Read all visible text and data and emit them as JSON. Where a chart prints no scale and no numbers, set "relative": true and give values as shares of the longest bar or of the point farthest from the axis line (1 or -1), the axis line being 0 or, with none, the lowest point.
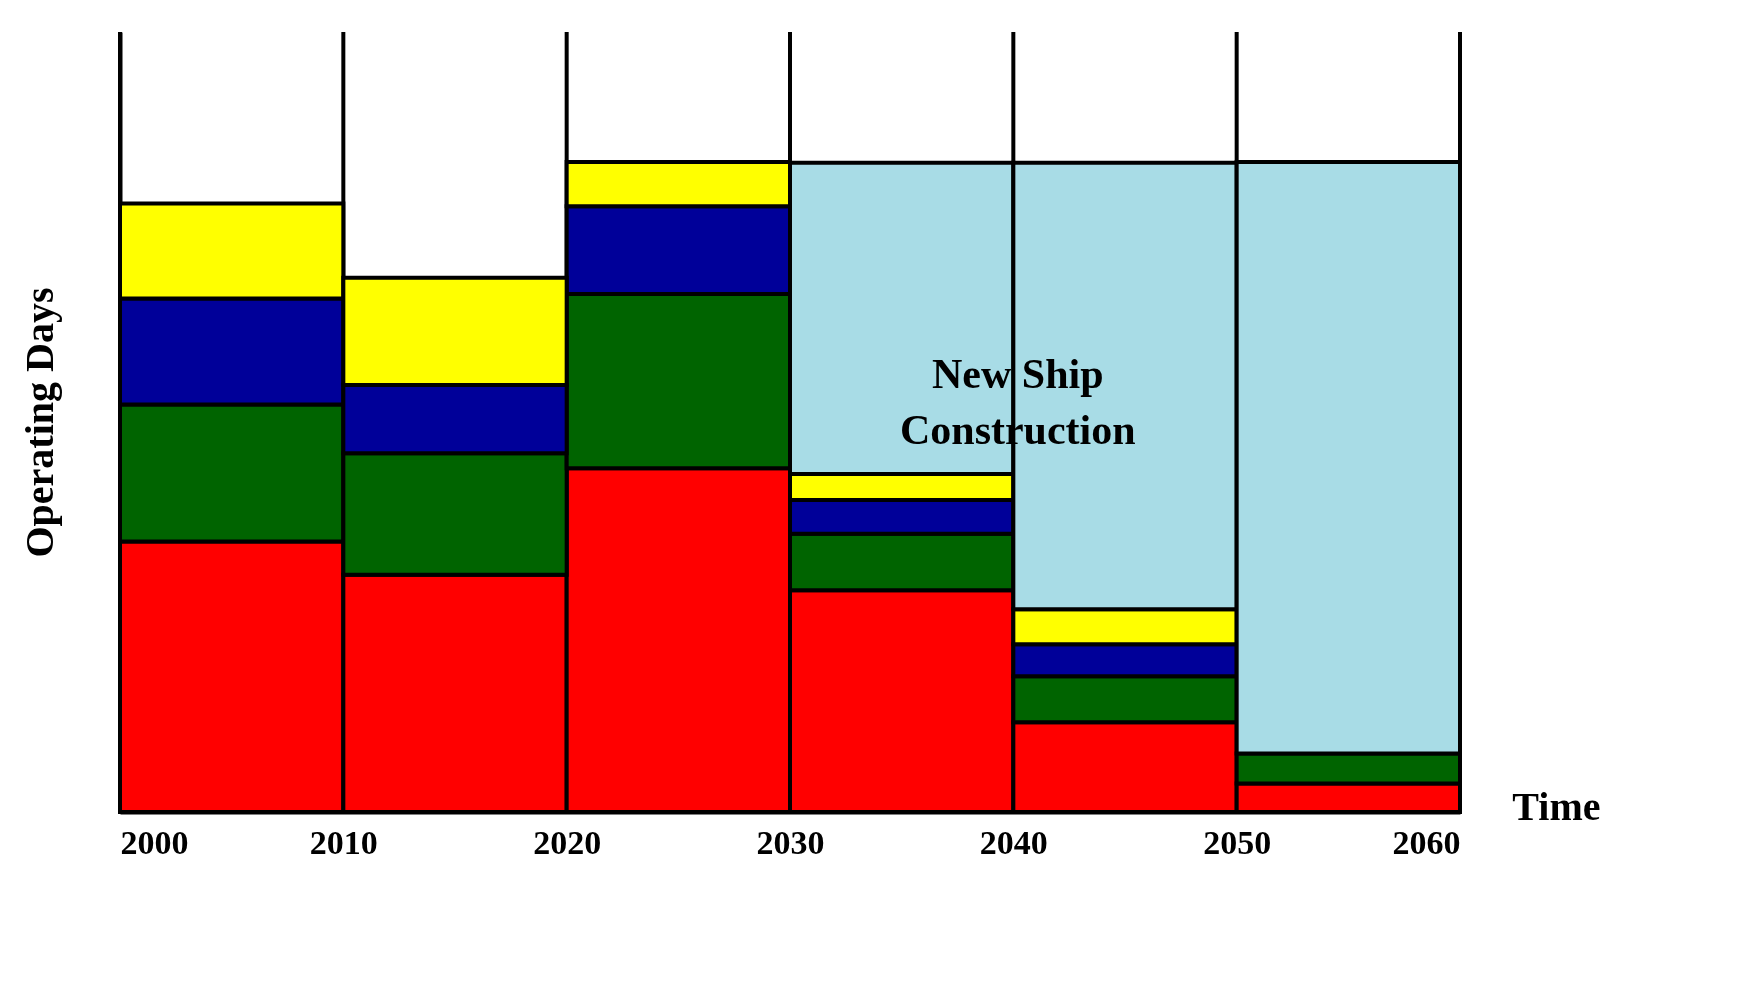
{
  "chart_data": {
    "type": "bar",
    "stacked": true,
    "relative": true,
    "xlabel": "Time",
    "ylabel": "Operating Days",
    "x": [
      2005,
      2015,
      2025,
      2035,
      2045,
      2055
    ],
    "xlim": [
      2000,
      2060
    ],
    "xticks": [
      2000,
      2010,
      2020,
      2030,
      2040,
      2050,
      2060
    ],
    "grid": "x",
    "legend": false,
    "series": [
      {
        "color": "#ff0000",
        "values": [
          0.416,
          0.365,
          0.529,
          0.341,
          0.138,
          0.044
        ]
      },
      {
        "color": "#006400",
        "values": [
          0.211,
          0.187,
          0.268,
          0.087,
          0.071,
          0.046
        ]
      },
      {
        "color": "#000099",
        "values": [
          0.163,
          0.105,
          0.135,
          0.052,
          0.049,
          null
        ]
      },
      {
        "color": "#ffff00",
        "values": [
          0.146,
          0.165,
          0.068,
          0.04,
          0.054,
          null
        ]
      },
      {
        "color": "#a8dce6",
        "values": [
          null,
          null,
          null,
          0.479,
          0.687,
          0.91
        ]
      }
    ],
    "annotations": [
      "New Ship\nConstruction"
    ]
  }
}
